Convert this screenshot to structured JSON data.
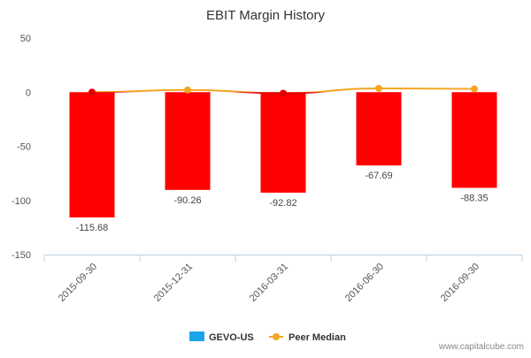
{
  "chart_data": {
    "type": "bar",
    "title": "EBIT Margin History",
    "categories": [
      "2015-09-30",
      "2015-12-31",
      "2016-03-31",
      "2016-06-30",
      "2016-09-30"
    ],
    "series": [
      {
        "name": "GEVO-US",
        "type": "bar",
        "values": [
          -115.68,
          -90.26,
          -92.82,
          -67.69,
          -88.35
        ],
        "labels": [
          "-115.68",
          "-90.26",
          "-92.82",
          "-67.69",
          "-88.35"
        ],
        "color": "#ff0000",
        "legend_color": "#1aa3e8"
      },
      {
        "name": "Peer Median",
        "type": "line",
        "values": [
          0.0,
          2.0,
          -1.0,
          3.5,
          3.0
        ],
        "color": "#f5a623",
        "colors_below_zero": "#e00000"
      }
    ],
    "yticks": [
      "50",
      "0",
      "-50",
      "-100",
      "-150"
    ],
    "ylim": [
      -150,
      50
    ],
    "grid": false,
    "legend": "bottom-center"
  },
  "credit": "www.capitalcube.com"
}
